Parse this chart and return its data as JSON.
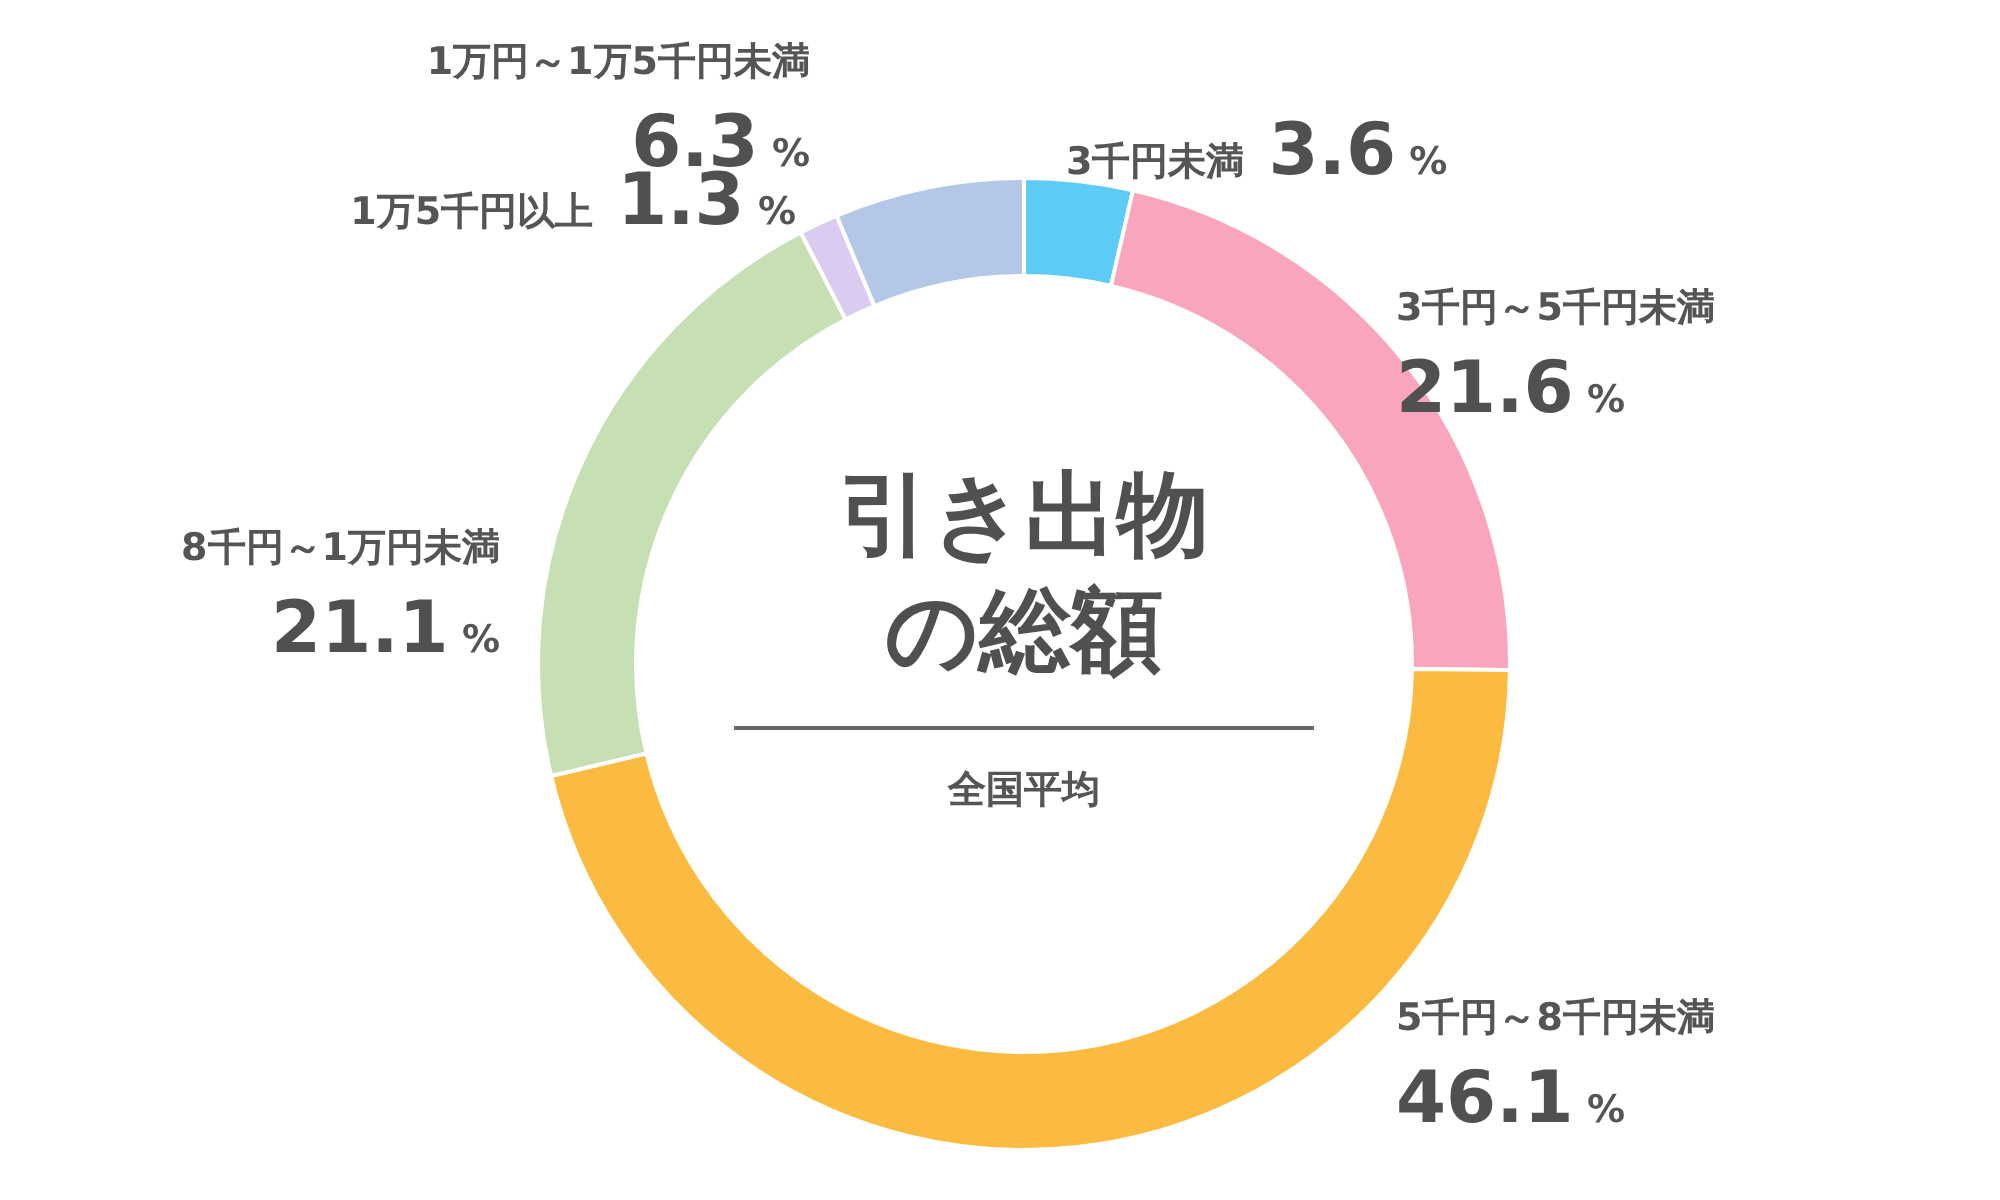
{
  "chart_data": {
    "type": "donut",
    "title": "引き出物の総額",
    "subtitle": "全国平均",
    "categories": [
      "3千円未満",
      "3千円～5千円未満",
      "5千円～8千円未満",
      "8千円～1万円未満",
      "1万5千円以上",
      "1万円～1万5千円未満"
    ],
    "values": [
      3.6,
      21.6,
      46.1,
      21.1,
      1.3,
      6.3
    ],
    "colors": [
      "#5ccbf5",
      "#f9a5bd",
      "#fbbb40",
      "#c6e0b4",
      "#dccbf0",
      "#b4c7e7"
    ],
    "value_labels": [
      "3.6 %",
      "21.6 %",
      "46.1 %",
      "21.1 %",
      "1.3 %",
      "6.3 %"
    ]
  }
}
